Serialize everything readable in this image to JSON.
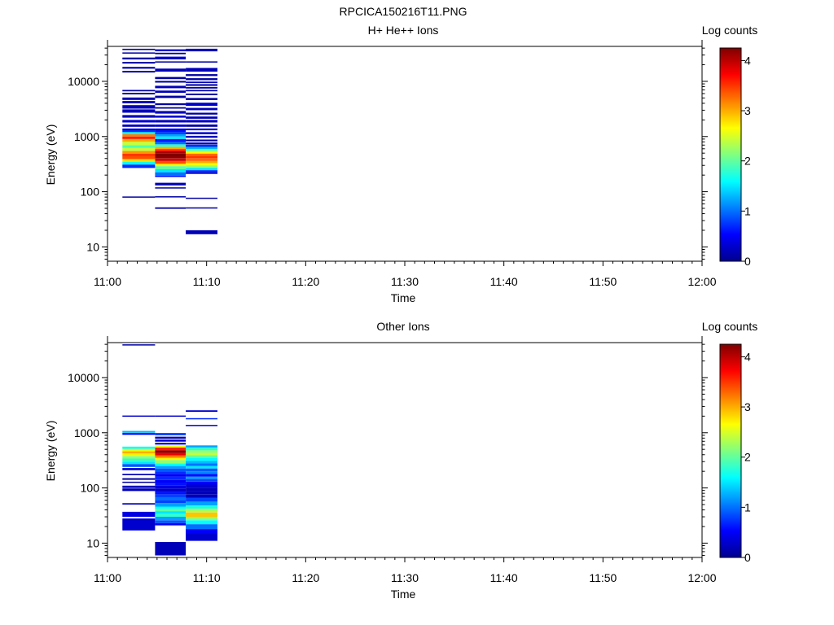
{
  "figure_title": "RPCICA150216T11.PNG",
  "colormap": [
    "#00008f",
    "#0000ff",
    "#0080ff",
    "#00ffff",
    "#80ff80",
    "#ffff00",
    "#ff8000",
    "#ff0000",
    "#800000"
  ],
  "chart_data": [
    {
      "type": "heatmap",
      "title": "H+ He++ Ions",
      "xlabel": "Time",
      "ylabel": "Energy (eV)",
      "y_scale": "log",
      "ylim": [
        5.5,
        43000
      ],
      "xlim": [
        "11:00",
        "12:00"
      ],
      "x_ticks": [
        "11:00",
        "11:10",
        "11:20",
        "11:30",
        "11:40",
        "11:50",
        "12:00"
      ],
      "y_ticks": [
        "10",
        "100",
        "1000",
        "10000"
      ],
      "colorbar": {
        "label": "Log counts",
        "range": [
          0,
          4.25
        ],
        "ticks": [
          "0",
          "1",
          "2",
          "3",
          "4"
        ]
      },
      "columns": [
        {
          "t_start": "11:01.5",
          "t_end": "11:04.8",
          "cells": [
            [
              37000,
              39000,
              0.1
            ],
            [
              32000,
              33500,
              0.1
            ],
            [
              25000,
              27000,
              0.1
            ],
            [
              21000,
              22500,
              0.1
            ],
            [
              17000,
              18300,
              0.2
            ],
            [
              14500,
              15500,
              0.1
            ],
            [
              6600,
              7000,
              0.1
            ],
            [
              5800,
              6200,
              0.1
            ],
            [
              4600,
              5100,
              0.2
            ],
            [
              4000,
              4400,
              0.2
            ],
            [
              3200,
              3700,
              0.2
            ],
            [
              2700,
              3100,
              0.2
            ],
            [
              2200,
              2450,
              0.2
            ],
            [
              1800,
              2000,
              0.3
            ],
            [
              1500,
              1650,
              0.2
            ],
            [
              1300,
              1400,
              0.3
            ],
            [
              1200,
              1300,
              0.7
            ],
            [
              1100,
              1200,
              1.6
            ],
            [
              1000,
              1100,
              3.2
            ],
            [
              900,
              1000,
              3.6
            ],
            [
              800,
              900,
              3.0
            ],
            [
              700,
              800,
              2.4
            ],
            [
              620,
              700,
              1.9
            ],
            [
              550,
              620,
              2.4
            ],
            [
              490,
              550,
              3.1
            ],
            [
              440,
              490,
              3.5
            ],
            [
              390,
              440,
              3.4
            ],
            [
              350,
              390,
              2.8
            ],
            [
              310,
              350,
              1.6
            ],
            [
              270,
              310,
              0.7
            ],
            [
              80,
              82,
              0.1
            ]
          ]
        },
        {
          "t_start": "11:04.8",
          "t_end": "11:07.9",
          "cells": [
            [
              35000,
              38000,
              0.3
            ],
            [
              31000,
              33000,
              0.1
            ],
            [
              25000,
              28000,
              0.3
            ],
            [
              22000,
              23000,
              0.1
            ],
            [
              15000,
              17000,
              0.2
            ],
            [
              11000,
              12000,
              0.1
            ],
            [
              9500,
              10200,
              0.1
            ],
            [
              7500,
              8300,
              0.2
            ],
            [
              6200,
              6800,
              0.2
            ],
            [
              5000,
              5500,
              0.1
            ],
            [
              3700,
              4000,
              0.1
            ],
            [
              3200,
              3400,
              0.1
            ],
            [
              2600,
              2900,
              0.2
            ],
            [
              2200,
              2400,
              0.3
            ],
            [
              1800,
              2000,
              0.2
            ],
            [
              1500,
              1650,
              0.3
            ],
            [
              1300,
              1400,
              0.3
            ],
            [
              1200,
              1300,
              0.6
            ],
            [
              1100,
              1200,
              0.8
            ],
            [
              1000,
              1100,
              1.2
            ],
            [
              900,
              1000,
              1.5
            ],
            [
              800,
              900,
              0.6
            ],
            [
              720,
              800,
              1.0
            ],
            [
              650,
              720,
              1.8
            ],
            [
              590,
              650,
              3.0
            ],
            [
              540,
              590,
              3.6
            ],
            [
              490,
              540,
              4.1
            ],
            [
              440,
              490,
              4.25
            ],
            [
              400,
              440,
              4.2
            ],
            [
              360,
              400,
              3.9
            ],
            [
              320,
              360,
              3.4
            ],
            [
              290,
              320,
              2.7
            ],
            [
              255,
              290,
              2.0
            ],
            [
              225,
              255,
              1.5
            ],
            [
              195,
              225,
              1.0
            ],
            [
              185,
              195,
              0.6
            ],
            [
              130,
              145,
              0.2
            ],
            [
              115,
              120,
              0.1
            ],
            [
              80,
              83,
              0.1
            ],
            [
              49,
              52,
              0.1
            ]
          ]
        },
        {
          "t_start": "11:07.9",
          "t_end": "11:11.1",
          "cells": [
            [
              35000,
              39000,
              0.2
            ],
            [
              22000,
              23000,
              0.1
            ],
            [
              15000,
              17500,
              0.2
            ],
            [
              12500,
              13500,
              0.1
            ],
            [
              10500,
              11400,
              0.1
            ],
            [
              9300,
              9900,
              0.2
            ],
            [
              8300,
              8900,
              0.1
            ],
            [
              7400,
              7900,
              0.2
            ],
            [
              6600,
              7000,
              0.1
            ],
            [
              5600,
              6000,
              0.1
            ],
            [
              4600,
              5000,
              0.1
            ],
            [
              3600,
              4100,
              0.3
            ],
            [
              3000,
              3300,
              0.2
            ],
            [
              2500,
              2700,
              0.1
            ],
            [
              2100,
              2300,
              0.2
            ],
            [
              1800,
              2000,
              0.2
            ],
            [
              1500,
              1650,
              0.1
            ],
            [
              1300,
              1400,
              0.3
            ],
            [
              1100,
              1200,
              0.3
            ],
            [
              950,
              1030,
              0.2
            ],
            [
              820,
              880,
              0.1
            ],
            [
              720,
              780,
              0.2
            ],
            [
              650,
              710,
              0.7
            ],
            [
              590,
              650,
              1.3
            ],
            [
              540,
              590,
              2.0
            ],
            [
              490,
              540,
              2.7
            ],
            [
              440,
              490,
              3.3
            ],
            [
              400,
              440,
              3.5
            ],
            [
              360,
              400,
              3.3
            ],
            [
              330,
              360,
              3.0
            ],
            [
              300,
              330,
              2.6
            ],
            [
              270,
              300,
              2.2
            ],
            [
              245,
              270,
              1.5
            ],
            [
              225,
              245,
              0.7
            ],
            [
              210,
              225,
              0.3
            ],
            [
              75,
              78,
              0.1
            ],
            [
              50,
              52,
              0.1
            ],
            [
              17,
              20,
              0.2
            ]
          ]
        }
      ]
    },
    {
      "type": "heatmap",
      "title": "Other Ions",
      "xlabel": "Time",
      "ylabel": "Energy (eV)",
      "y_scale": "log",
      "ylim": [
        5.5,
        43000
      ],
      "xlim": [
        "11:00",
        "12:00"
      ],
      "x_ticks": [
        "11:00",
        "11:10",
        "11:20",
        "11:30",
        "11:40",
        "11:50",
        "12:00"
      ],
      "y_ticks": [
        "10",
        "100",
        "1000",
        "10000"
      ],
      "colorbar": {
        "label": "Log counts",
        "range": [
          0,
          4.25
        ],
        "ticks": [
          "0",
          "1",
          "2",
          "3",
          "4"
        ]
      },
      "columns": [
        {
          "t_start": "11:01.5",
          "t_end": "11:04.8",
          "cells": [
            [
              38000,
              40000,
              0.1
            ],
            [
              1950,
              2050,
              0.3
            ],
            [
              1000,
              1080,
              1.3
            ],
            [
              920,
              990,
              0.5
            ],
            [
              510,
              560,
              1.6
            ],
            [
              460,
              510,
              2.6
            ],
            [
              420,
              460,
              3.0
            ],
            [
              380,
              420,
              2.7
            ],
            [
              340,
              380,
              2.2
            ],
            [
              300,
              340,
              1.8
            ],
            [
              270,
              300,
              1.5
            ],
            [
              240,
              270,
              0.9
            ],
            [
              210,
              230,
              0.3
            ],
            [
              170,
              180,
              0.2
            ],
            [
              140,
              150,
              0.1
            ],
            [
              125,
              130,
              0.1
            ],
            [
              100,
              110,
              0.2
            ],
            [
              88,
              98,
              0.2
            ],
            [
              50,
              53,
              0.2
            ],
            [
              30,
              37,
              0.4
            ],
            [
              17,
              28,
              0.3
            ]
          ]
        },
        {
          "t_start": "11:04.8",
          "t_end": "11:07.9",
          "cells": [
            [
              1950,
              2050,
              0.3
            ],
            [
              900,
              990,
              0.8
            ],
            [
              780,
              850,
              0.2
            ],
            [
              690,
              750,
              0.3
            ],
            [
              610,
              660,
              0.3
            ],
            [
              540,
              590,
              2.6
            ],
            [
              480,
              540,
              3.6
            ],
            [
              430,
              480,
              4.2
            ],
            [
              390,
              430,
              3.8
            ],
            [
              350,
              390,
              3.2
            ],
            [
              320,
              350,
              2.7
            ],
            [
              280,
              320,
              2.2
            ],
            [
              250,
              280,
              1.6
            ],
            [
              225,
              250,
              1.2
            ],
            [
              200,
              225,
              0.9
            ],
            [
              180,
              200,
              0.7
            ],
            [
              160,
              180,
              0.5
            ],
            [
              140,
              160,
              0.7
            ],
            [
              125,
              140,
              0.5
            ],
            [
              110,
              125,
              0.6
            ],
            [
              98,
              110,
              0.4
            ],
            [
              85,
              98,
              0.3
            ],
            [
              76,
              85,
              0.6
            ],
            [
              68,
              76,
              0.8
            ],
            [
              60,
              68,
              1.0
            ],
            [
              53,
              60,
              0.8
            ],
            [
              46,
              53,
              1.2
            ],
            [
              42,
              46,
              1.6
            ],
            [
              38,
              42,
              2.0
            ],
            [
              34,
              38,
              1.5
            ],
            [
              30,
              34,
              1.8
            ],
            [
              26,
              30,
              1.2
            ],
            [
              23,
              26,
              0.9
            ],
            [
              21,
              23,
              0.5
            ],
            [
              6,
              10.5,
              0.2
            ]
          ]
        },
        {
          "t_start": "11:07.9",
          "t_end": "11:11.1",
          "cells": [
            [
              2400,
              2550,
              0.3
            ],
            [
              1760,
              1840,
              0.7
            ],
            [
              1320,
              1390,
              0.4
            ],
            [
              540,
              590,
              1.2
            ],
            [
              480,
              540,
              1.8
            ],
            [
              430,
              480,
              2.2
            ],
            [
              390,
              430,
              2.4
            ],
            [
              350,
              390,
              2.0
            ],
            [
              310,
              350,
              1.6
            ],
            [
              280,
              310,
              1.3
            ],
            [
              250,
              280,
              1.0
            ],
            [
              225,
              250,
              1.5
            ],
            [
              200,
              225,
              0.9
            ],
            [
              180,
              200,
              1.1
            ],
            [
              160,
              180,
              0.6
            ],
            [
              145,
              160,
              1.2
            ],
            [
              130,
              145,
              0.8
            ],
            [
              115,
              130,
              0.5
            ],
            [
              100,
              115,
              0.3
            ],
            [
              88,
              100,
              0.2
            ],
            [
              76,
              88,
              0.2
            ],
            [
              66,
              76,
              0.2
            ],
            [
              56,
              66,
              0.8
            ],
            [
              48,
              56,
              1.2
            ],
            [
              42,
              48,
              1.7
            ],
            [
              36,
              42,
              2.3
            ],
            [
              30,
              36,
              2.9
            ],
            [
              26,
              30,
              2.2
            ],
            [
              22,
              26,
              1.6
            ],
            [
              18,
              22,
              1.0
            ],
            [
              15,
              18,
              0.5
            ],
            [
              11,
              15,
              0.3
            ]
          ]
        }
      ]
    }
  ]
}
